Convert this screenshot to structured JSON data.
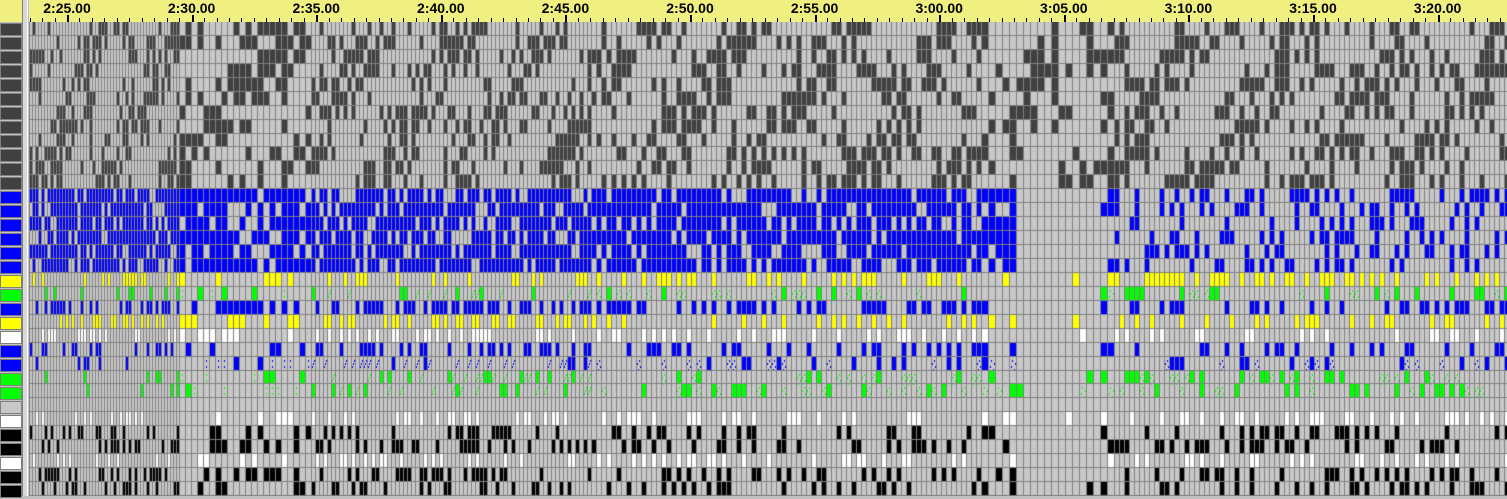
{
  "ruler": {
    "labels": [
      "2:25.00",
      "2:30.00",
      "2:35.00",
      "2:40.00",
      "2:45.00",
      "2:50.00",
      "2:55.00",
      "3:00.00",
      "3:05.00",
      "3:10.00",
      "3:15.00",
      "3:20.00"
    ]
  },
  "colors": {
    "ruler_bg": "#f0f080",
    "cell_off": "#c8c8c8",
    "grid": "#808080",
    "dark": "#404040",
    "blue": "#0000ff",
    "yellow": "#ffff00",
    "green": "#00ff00",
    "white": "#ffffff",
    "black": "#000000",
    "gray": "#c8c8c8"
  },
  "channels": [
    "dark",
    "dark",
    "dark",
    "dark",
    "dark",
    "dark",
    "dark",
    "dark",
    "dark",
    "dark",
    "dark",
    "dark",
    "blue",
    "blue",
    "blue",
    "blue",
    "blue",
    "blue",
    "yellow",
    "green",
    "blue",
    "yellow",
    "white",
    "blue",
    "blue",
    "green",
    "green",
    "gray",
    "white",
    "black",
    "black",
    "white",
    "black",
    "black"
  ]
}
